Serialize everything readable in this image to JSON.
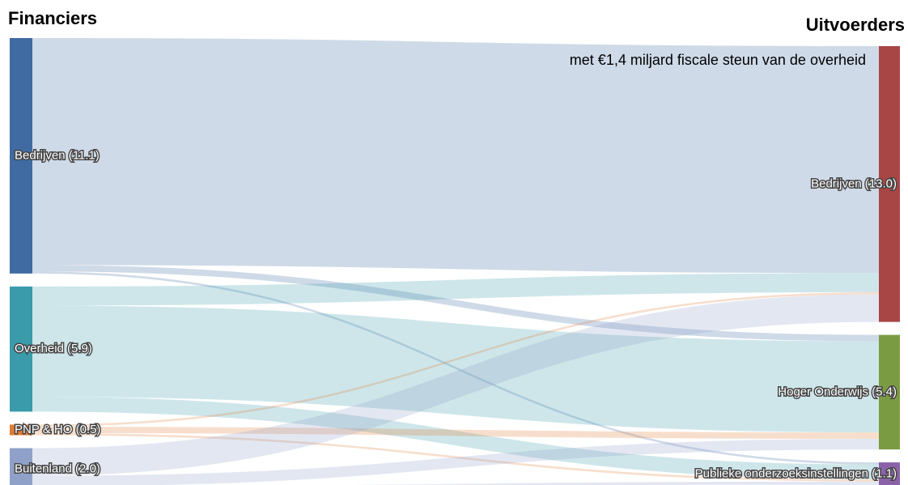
{
  "chart_data": {
    "type": "sankey",
    "left_title": "Financiers",
    "right_title": "Uitvoerders",
    "annotation": "met €1,4 miljard fiscale steun van de overheid",
    "sources": [
      {
        "label": "Bedrijven (11.1)",
        "value": 11.1,
        "color": "#3f6ba2"
      },
      {
        "label": "Overheid (5.9)",
        "value": 5.9,
        "color": "#3a9bab"
      },
      {
        "label": "PNP & HO (0.5)",
        "value": 0.5,
        "color": "#e07b32"
      },
      {
        "label": "Buitenland (2.0)",
        "value": 2.0,
        "color": "#8fa1c9"
      }
    ],
    "targets": [
      {
        "label": "Bedrijven (13.0)",
        "value": 13.0,
        "color": "#a84545"
      },
      {
        "label": "Hoger Onderwijs (5.4)",
        "value": 5.4,
        "color": "#7b9b42"
      },
      {
        "label": "Publieke onderzoeksinstellingen (1.1)",
        "value": 1.1,
        "color": "#8b62a9"
      }
    ],
    "links": [
      {
        "source": 0,
        "target": 0,
        "value": 10.7
      },
      {
        "source": 0,
        "target": 1,
        "value": 0.3
      },
      {
        "source": 0,
        "target": 2,
        "value": 0.1
      },
      {
        "source": 1,
        "target": 0,
        "value": 0.9
      },
      {
        "source": 1,
        "target": 1,
        "value": 4.3
      },
      {
        "source": 1,
        "target": 2,
        "value": 0.7
      },
      {
        "source": 2,
        "target": 0,
        "value": 0.1
      },
      {
        "source": 2,
        "target": 1,
        "value": 0.3
      },
      {
        "source": 2,
        "target": 2,
        "value": 0.1
      },
      {
        "source": 3,
        "target": 0,
        "value": 1.3
      },
      {
        "source": 3,
        "target": 1,
        "value": 0.5
      },
      {
        "source": 3,
        "target": 2,
        "value": 0.2
      }
    ]
  }
}
